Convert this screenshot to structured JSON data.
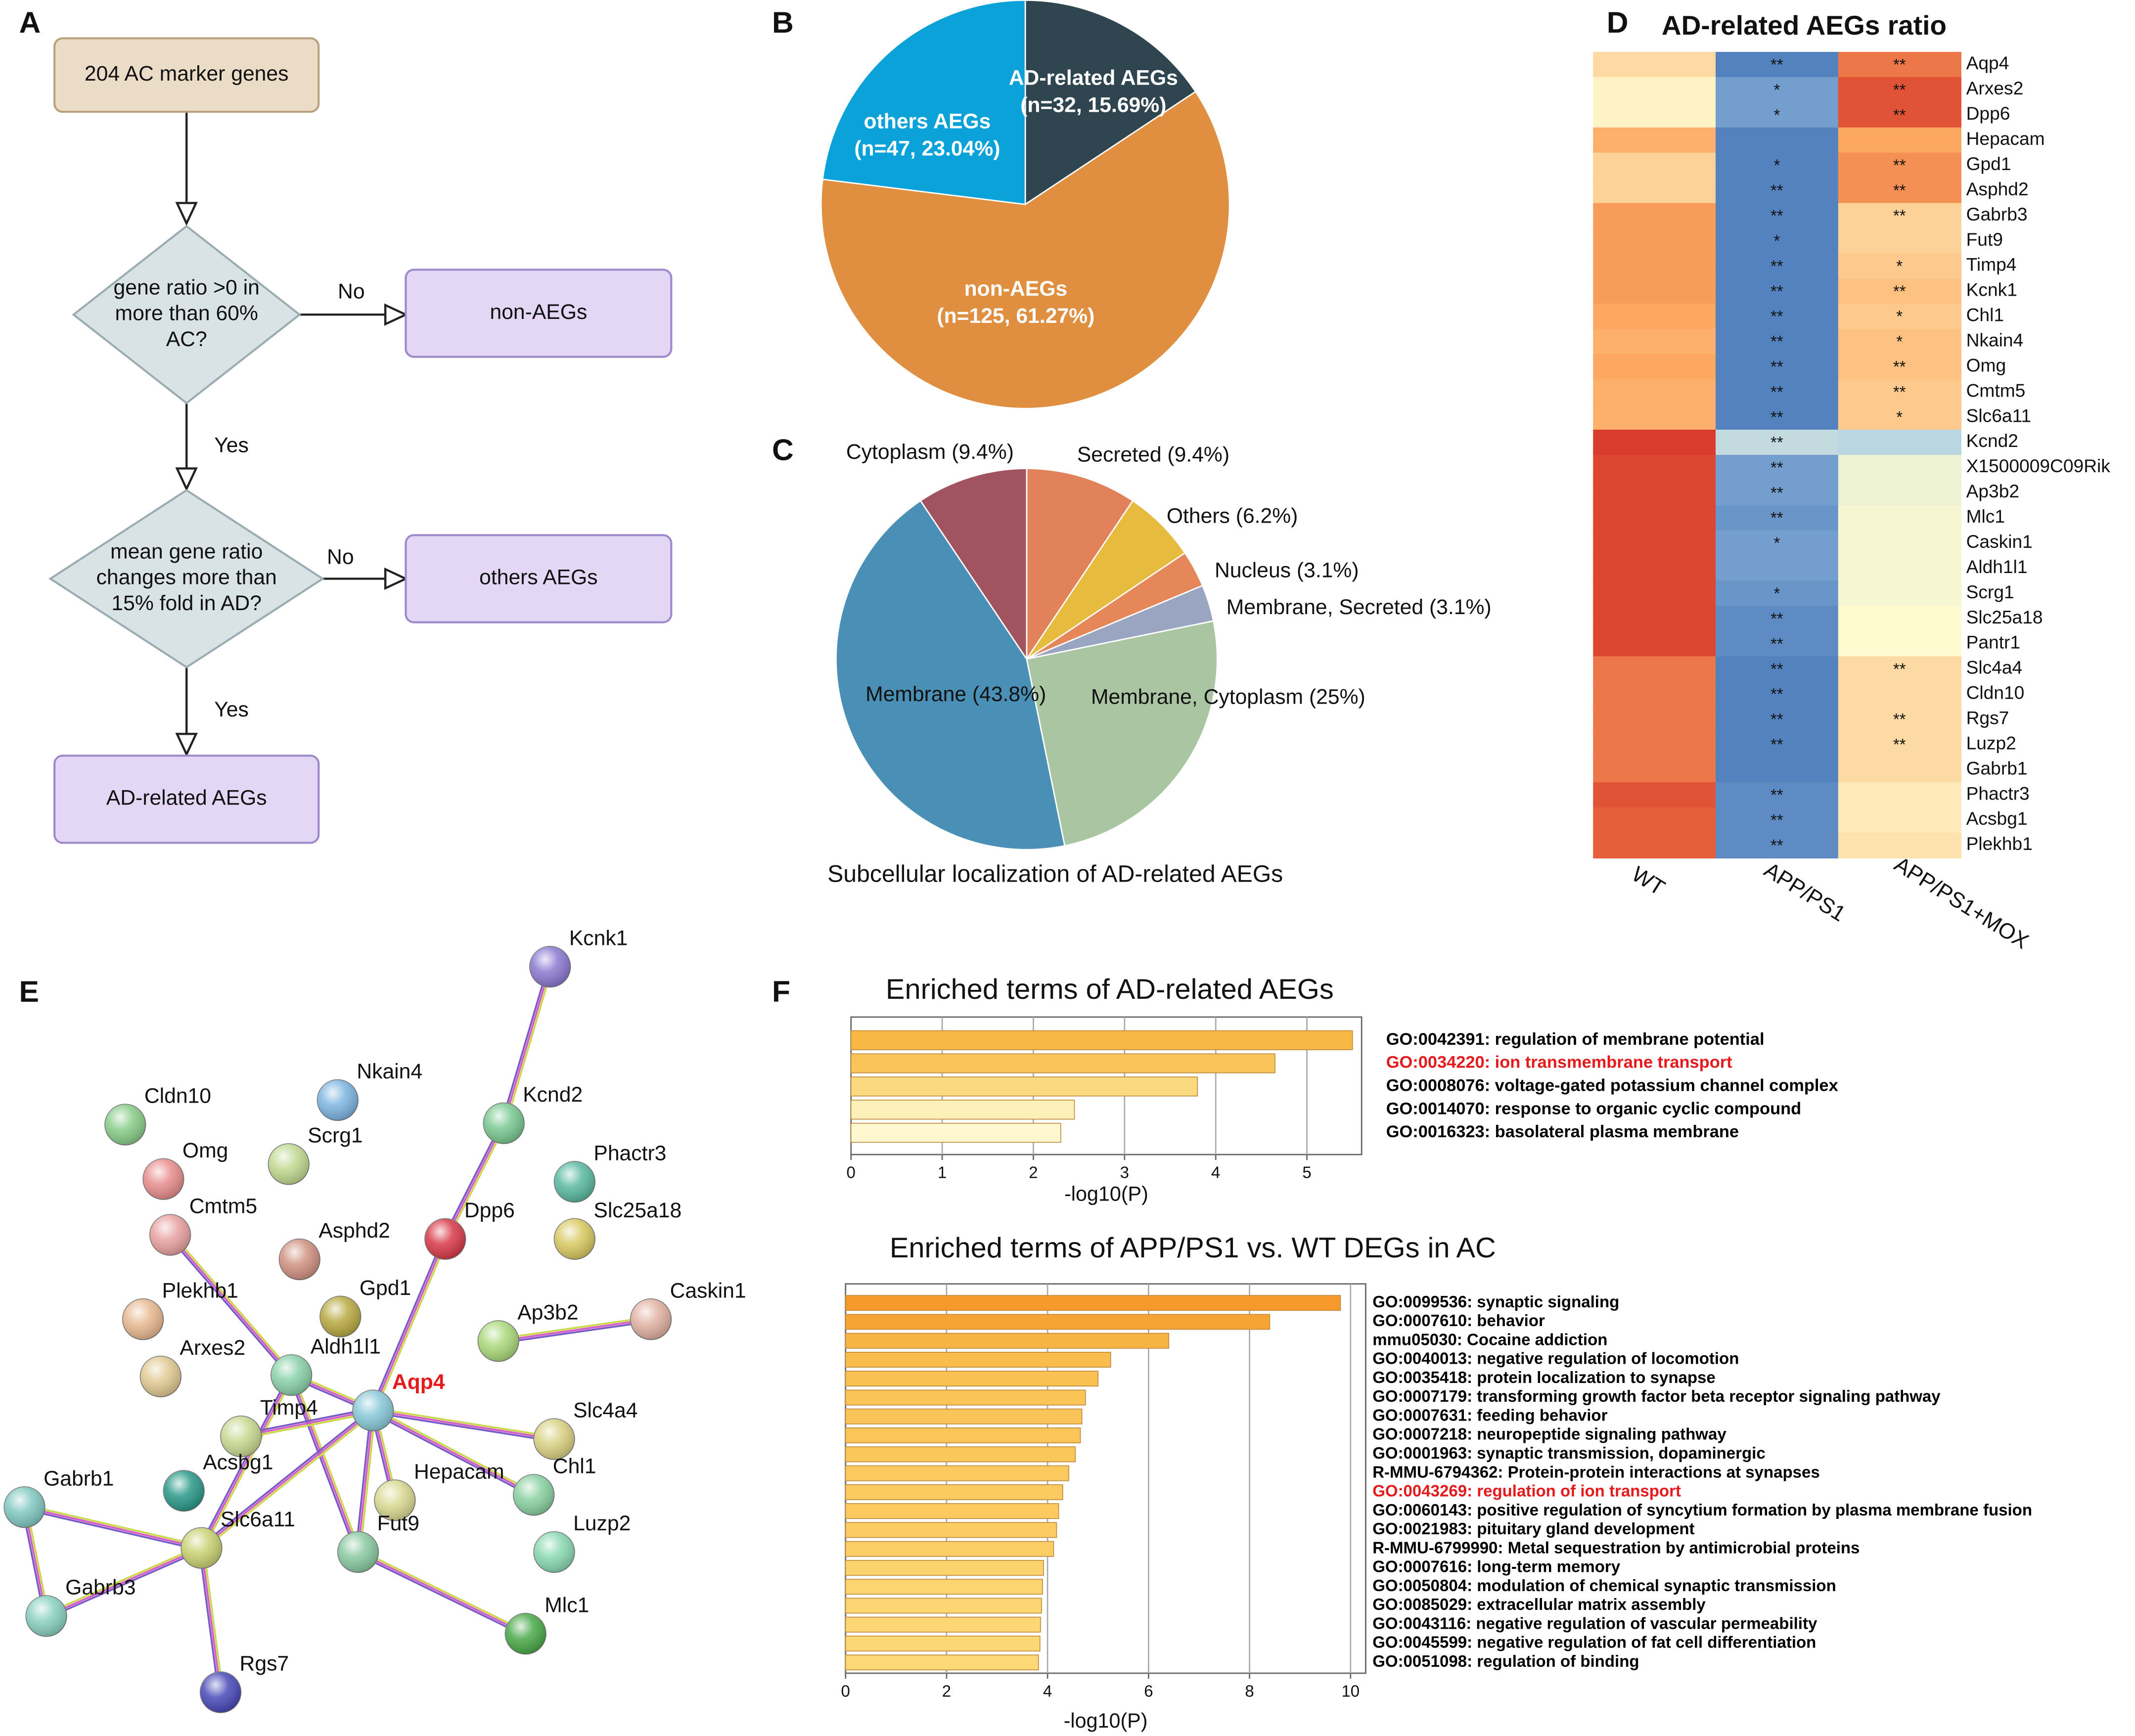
{
  "flowchart": {
    "label": "A",
    "nodes": [
      {
        "lines": [
          "204 AC marker genes"
        ]
      },
      {
        "lines": [
          "gene ratio >0 in",
          "more than 60%",
          "AC?"
        ]
      },
      {
        "lines": [
          "non-AEGs"
        ]
      },
      {
        "lines": [
          "mean gene ratio",
          "changes more than",
          "15% fold in AD?"
        ]
      },
      {
        "lines": [
          "others AEGs"
        ]
      },
      {
        "lines": [
          "AD-related AEGs"
        ]
      }
    ],
    "edge_labels": [
      "No",
      "Yes",
      "No",
      "Yes"
    ]
  },
  "chart_data": [
    {
      "type": "pie",
      "panel_label": "B",
      "categories": [
        "AD-related AEGs",
        "non-AEGs",
        "others AEGs"
      ],
      "values": [
        15.69,
        61.27,
        23.04
      ],
      "value_labels": [
        "(n=32, 15.69%)",
        "(n=125, 61.27%)",
        "(n=47, 23.04%)"
      ],
      "colors": [
        "#2f4550",
        "#e08e3f",
        "#0ba1d9"
      ]
    },
    {
      "type": "pie",
      "panel_label": "C",
      "title": "Subcellular localization of AD-related AEGs",
      "categories": [
        "Secreted",
        "Others",
        "Nucleus",
        "Membrane, Secreted",
        "Membrane, Cytoplasm",
        "Membrane",
        "Cytoplasm"
      ],
      "values": [
        9.4,
        6.2,
        3.1,
        3.1,
        25,
        43.8,
        9.4
      ],
      "value_labels": [
        "(9.4%)",
        "(6.2%)",
        "(3.1%)",
        "(3.1%)",
        "(25%)",
        "(43.8%)",
        "(9.4%)"
      ],
      "colors": [
        "#e2825a",
        "#e6bb3e",
        "#e6875a",
        "#99a5c1",
        "#a9c5a2",
        "#4a8fb5",
        "#a1535f"
      ]
    },
    {
      "type": "heatmap",
      "panel_label": "D",
      "title": "AD-related AEGs ratio",
      "columns": [
        "WT",
        "APP/PS1",
        "APP/PS1+MOX"
      ],
      "rows": [
        "Aqp4",
        "Arxes2",
        "Dpp6",
        "Hepacam",
        "Gpd1",
        "Asphd2",
        "Gabrb3",
        "Fut9",
        "Timp4",
        "Kcnk1",
        "Chl1",
        "Nkain4",
        "Omg",
        "Cmtm5",
        "Slc6a11",
        "Kcnd2",
        "X1500009C09Rik",
        "Ap3b2",
        "Mlc1",
        "Caskin1",
        "Aldh1l1",
        "Scrg1",
        "Slc25a18",
        "Pantr1",
        "Slc4a4",
        "Cldn10",
        "Rgs7",
        "Luzp2",
        "Gabrb1",
        "Phactr3",
        "Acsbg1",
        "Plekhb1"
      ],
      "values": [
        [
          0.2,
          -0.9,
          0.7
        ],
        [
          0.05,
          -0.75,
          0.85
        ],
        [
          0.05,
          -0.75,
          0.85
        ],
        [
          0.45,
          -0.9,
          0.5
        ],
        [
          0.25,
          -0.9,
          0.6
        ],
        [
          0.25,
          -0.9,
          0.6
        ],
        [
          0.55,
          -0.9,
          0.25
        ],
        [
          0.55,
          -0.9,
          0.25
        ],
        [
          0.55,
          -0.9,
          0.3
        ],
        [
          0.55,
          -0.9,
          0.35
        ],
        [
          0.5,
          -0.9,
          0.3
        ],
        [
          0.45,
          -0.9,
          0.35
        ],
        [
          0.5,
          -0.9,
          0.35
        ],
        [
          0.45,
          -0.9,
          0.3
        ],
        [
          0.45,
          -0.9,
          0.3
        ],
        [
          0.95,
          -0.35,
          -0.4
        ],
        [
          0.9,
          -0.75,
          -0.1
        ],
        [
          0.9,
          -0.75,
          -0.1
        ],
        [
          0.9,
          -0.8,
          -0.05
        ],
        [
          0.9,
          -0.75,
          -0.05
        ],
        [
          0.9,
          -0.75,
          -0.05
        ],
        [
          0.9,
          -0.8,
          -0.05
        ],
        [
          0.9,
          -0.85,
          0
        ],
        [
          0.9,
          -0.85,
          0
        ],
        [
          0.7,
          -0.9,
          0.2
        ],
        [
          0.7,
          -0.9,
          0.2
        ],
        [
          0.7,
          -0.9,
          0.2
        ],
        [
          0.7,
          -0.9,
          0.2
        ],
        [
          0.7,
          -0.9,
          0.2
        ],
        [
          0.85,
          -0.85,
          0.1
        ],
        [
          0.8,
          -0.85,
          0.1
        ],
        [
          0.8,
          -0.85,
          0.15
        ]
      ],
      "stars": [
        [
          null,
          "**",
          "**"
        ],
        [
          null,
          "*",
          "**"
        ],
        [
          null,
          "*",
          "**"
        ],
        [
          null,
          null,
          null
        ],
        [
          null,
          "*",
          "**"
        ],
        [
          null,
          "**",
          "**"
        ],
        [
          null,
          "**",
          "**"
        ],
        [
          null,
          "*",
          null
        ],
        [
          null,
          "**",
          "*"
        ],
        [
          null,
          "**",
          "**"
        ],
        [
          null,
          "**",
          "*"
        ],
        [
          null,
          "**",
          "*"
        ],
        [
          null,
          "**",
          "**"
        ],
        [
          null,
          "**",
          "**"
        ],
        [
          null,
          "**",
          "*"
        ],
        [
          null,
          "**",
          null
        ],
        [
          null,
          "**",
          null
        ],
        [
          null,
          "**",
          null
        ],
        [
          null,
          "**",
          null
        ],
        [
          null,
          "*",
          null
        ],
        [
          null,
          null,
          null
        ],
        [
          null,
          "*",
          null
        ],
        [
          null,
          "**",
          null
        ],
        [
          null,
          "**",
          null
        ],
        [
          null,
          "**",
          "**"
        ],
        [
          null,
          "**",
          null
        ],
        [
          null,
          "**",
          "**"
        ],
        [
          null,
          "**",
          "**"
        ],
        [
          null,
          null,
          null
        ],
        [
          null,
          "**",
          null
        ],
        [
          null,
          "**",
          null
        ],
        [
          null,
          "**",
          null
        ]
      ],
      "zlim": [
        -1,
        1
      ],
      "colors": [
        "#3e6fb4",
        "#a9cde5",
        "#fefbd0",
        "#fca860",
        "#d52f26"
      ]
    },
    {
      "type": "barh",
      "panel_label": "F",
      "title": "Enriched terms of AD-related AEGs",
      "xlabel": "-log10(P)",
      "categories": [
        "GO:0042391: regulation of membrane potential",
        "GO:0034220: ion transmembrane transport",
        "GO:0008076: voltage-gated potassium channel complex",
        "GO:0014070: response to organic cyclic compound",
        "GO:0016323: basolateral plasma membrane"
      ],
      "values": [
        5.5,
        4.65,
        3.8,
        2.45,
        2.3
      ],
      "colors": [
        "#f8b845",
        "#f9c55a",
        "#fbd980",
        "#fdf0b8",
        "#fef7d0"
      ],
      "label_colors": [
        "#000000",
        "#e41a1c",
        "#000000",
        "#000000",
        "#000000"
      ],
      "xlim": [
        0,
        5.6
      ],
      "xticks": [
        0,
        1,
        2,
        3,
        4,
        5
      ],
      "grid": true
    },
    {
      "type": "barh",
      "title": "Enriched terms of APP/PS1 vs. WT DEGs in AC",
      "xlabel": "-log10(P)",
      "categories": [
        "GO:0099536: synaptic signaling",
        "GO:0007610: behavior",
        "mmu05030: Cocaine addiction",
        "GO:0040013: negative regulation of locomotion",
        "GO:0035418: protein localization to synapse",
        "GO:0007179: transforming growth factor beta receptor signaling pathway",
        "GO:0007631: feeding behavior",
        "GO:0007218: neuropeptide signaling pathway",
        "GO:0001963: synaptic transmission, dopaminergic",
        "R-MMU-6794362: Protein-protein interactions at synapses",
        "GO:0043269: regulation of ion transport",
        "GO:0060143: positive regulation of syncytium formation by plasma membrane fusion",
        "GO:0021983: pituitary gland development",
        "R-MMU-6799990: Metal sequestration by antimicrobial proteins",
        "GO:0007616: long-term memory",
        "GO:0050804: modulation of chemical synaptic transmission",
        "GO:0085029: extracellular matrix assembly",
        "GO:0043116: negative regulation of vascular permeability",
        "GO:0045599: negative regulation of fat cell differentiation",
        "GO:0051098: regulation of binding"
      ],
      "values": [
        9.8,
        8.4,
        6.4,
        5.25,
        5.0,
        4.75,
        4.68,
        4.65,
        4.55,
        4.42,
        4.3,
        4.22,
        4.18,
        4.12,
        3.92,
        3.9,
        3.88,
        3.86,
        3.85,
        3.82
      ],
      "colors": [
        "#f59a2b",
        "#f6a534",
        "#f8b443",
        "#f9bd4e",
        "#f9c052",
        "#fac456",
        "#fac558",
        "#fac659",
        "#fac75b",
        "#fbc95e",
        "#fbca60",
        "#fbcb62",
        "#fbcc63",
        "#fbcd65",
        "#fcd46f",
        "#fcd570",
        "#fcd672",
        "#fcd773",
        "#fcd874",
        "#fcd976"
      ],
      "label_colors": [
        "#000000",
        "#000000",
        "#000000",
        "#000000",
        "#000000",
        "#000000",
        "#000000",
        "#000000",
        "#000000",
        "#000000",
        "#e41a1c",
        "#000000",
        "#000000",
        "#000000",
        "#000000",
        "#000000",
        "#000000",
        "#000000",
        "#000000",
        "#000000"
      ],
      "xlim": [
        0,
        10.3
      ],
      "xticks": [
        0,
        2,
        4,
        6,
        8,
        10
      ],
      "grid": true
    }
  ],
  "network": {
    "label": "E",
    "nodes": [
      {
        "label": "Kcnk1",
        "color": "#8a78d0"
      },
      {
        "label": "Nkain4",
        "color": "#7cb4e0"
      },
      {
        "label": "Cldn10",
        "color": "#88cc88"
      },
      {
        "label": "Kcnd2",
        "color": "#78c890"
      },
      {
        "label": "Scrg1",
        "color": "#c0d890"
      },
      {
        "label": "Omg",
        "color": "#e88c8c"
      },
      {
        "label": "Phactr3",
        "color": "#58b8a0"
      },
      {
        "label": "Dpp6",
        "color": "#d83848"
      },
      {
        "label": "Slc25a18",
        "color": "#d8c860"
      },
      {
        "label": "Cmtm5",
        "color": "#e8a0a0"
      },
      {
        "label": "Asphd2",
        "color": "#d09080"
      },
      {
        "label": "Gpd1",
        "color": "#b8a840"
      },
      {
        "label": "Caskin1",
        "color": "#e0b0a0"
      },
      {
        "label": "Plekhb1",
        "color": "#e8b890"
      },
      {
        "label": "Ap3b2",
        "color": "#a8d878"
      },
      {
        "label": "Aldh1l1",
        "color": "#88d0a8"
      },
      {
        "label": "Arxes2",
        "color": "#e0c890"
      },
      {
        "label": "Aqp4",
        "color": "#88c8d8",
        "label_color": "#e41a1c"
      },
      {
        "label": "Timp4",
        "color": "#c8d890"
      },
      {
        "label": "Slc4a4",
        "color": "#d8d080"
      },
      {
        "label": "Acsbg1",
        "color": "#289888"
      },
      {
        "label": "Chl1",
        "color": "#88d0a0"
      },
      {
        "label": "Hepacam",
        "color": "#d8d890"
      },
      {
        "label": "Gabrb1",
        "color": "#80c8c0"
      },
      {
        "label": "Slc6a11",
        "color": "#c8d070"
      },
      {
        "label": "Fut9",
        "color": "#88c8a0"
      },
      {
        "label": "Luzp2",
        "color": "#88d8b0"
      },
      {
        "label": "Gabrb3",
        "color": "#88d0c0"
      },
      {
        "label": "Mlc1",
        "color": "#48a848"
      },
      {
        "label": "Rgs7",
        "color": "#4848b8"
      }
    ]
  }
}
